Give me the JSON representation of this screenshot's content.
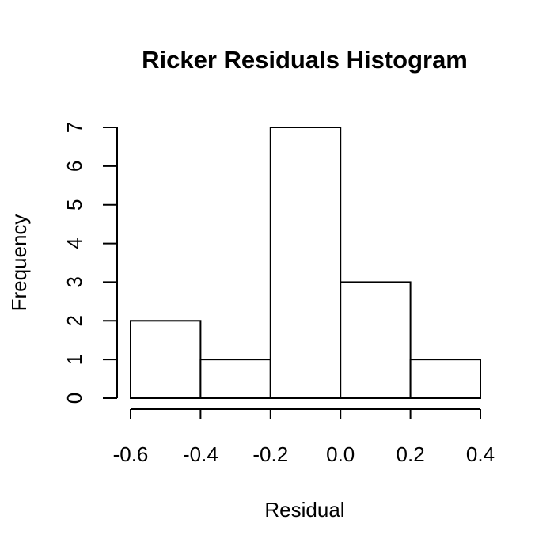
{
  "chart_data": {
    "type": "bar",
    "title": "Ricker Residuals Histogram",
    "xlabel": "Residual",
    "ylabel": "Frequency",
    "bins": [
      {
        "start": -0.6,
        "end": -0.4,
        "count": 2
      },
      {
        "start": -0.4,
        "end": -0.2,
        "count": 1
      },
      {
        "start": -0.2,
        "end": 0.0,
        "count": 7
      },
      {
        "start": 0.0,
        "end": 0.2,
        "count": 3
      },
      {
        "start": 0.2,
        "end": 0.4,
        "count": 1
      }
    ],
    "xlim": [
      -0.6,
      0.4
    ],
    "ylim": [
      0,
      7
    ],
    "xticks": [
      "-0.6",
      "-0.4",
      "-0.2",
      "0.0",
      "0.2",
      "0.4"
    ],
    "yticks": [
      "0",
      "1",
      "2",
      "3",
      "4",
      "5",
      "6",
      "7"
    ],
    "grid": false,
    "colors": {
      "bar_fill": "#ffffff",
      "bar_stroke": "#000000"
    }
  }
}
